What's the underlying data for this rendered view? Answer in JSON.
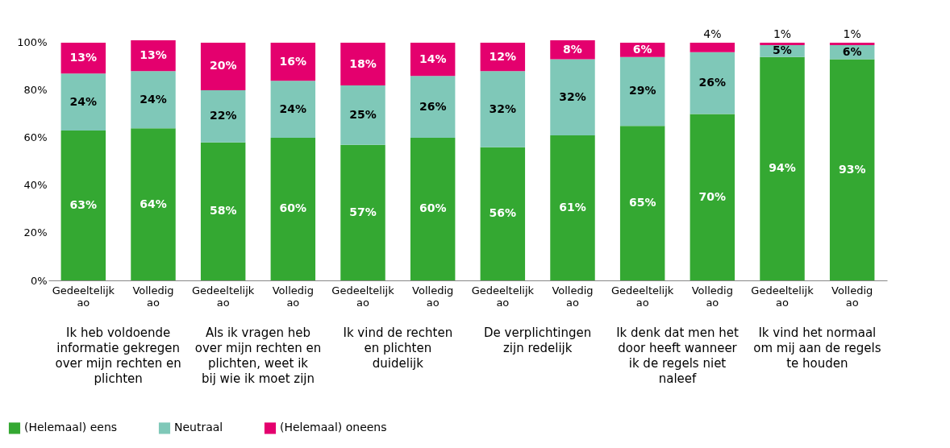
{
  "chart_data": {
    "type": "bar",
    "stacked": true,
    "categories": [
      "Gedeeltelijk ao",
      "Volledig ao",
      "Gedeeltelijk ao",
      "Volledig ao",
      "Gedeeltelijk ao",
      "Volledig ao",
      "Gedeeltelijk ao",
      "Volledig ao",
      "Gedeeltelijk ao",
      "Volledig ao",
      "Gedeeltelijk ao",
      "Volledig ao"
    ],
    "series": [
      {
        "name": "(Helemaal) eens",
        "color": "#34a832",
        "values": [
          63,
          64,
          58,
          60,
          57,
          60,
          56,
          61,
          65,
          70,
          94,
          93
        ],
        "value_labels": [
          "63%",
          "64%",
          "58%",
          "60%",
          "57%",
          "60%",
          "56%",
          "61%",
          "65%",
          "70%",
          "94%",
          "93%"
        ]
      },
      {
        "name": "Neutraal",
        "color": "#7fc8b8",
        "values": [
          24,
          24,
          22,
          24,
          25,
          26,
          32,
          32,
          29,
          26,
          5,
          6
        ],
        "value_labels": [
          "24%",
          "24%",
          "22%",
          "24%",
          "25%",
          "26%",
          "32%",
          "32%",
          "29%",
          "26%",
          "5%",
          "6%"
        ]
      },
      {
        "name": "(Helemaal) oneens",
        "color": "#e4006e",
        "values": [
          13,
          13,
          20,
          16,
          18,
          14,
          12,
          8,
          6,
          4,
          1,
          1
        ],
        "value_labels": [
          "13%",
          "13%",
          "20%",
          "16%",
          "18%",
          "14%",
          "12%",
          "8%",
          "6%",
          "4%",
          "1%",
          "1%"
        ]
      }
    ],
    "ylim": [
      0,
      101
    ],
    "yticks": [
      {
        "value": 0,
        "label": "0%"
      },
      {
        "value": 20,
        "label": "20%"
      },
      {
        "value": 40,
        "label": "40%"
      },
      {
        "value": 60,
        "label": "60%"
      },
      {
        "value": 80,
        "label": "80%"
      },
      {
        "value": 100,
        "label": "100%"
      }
    ],
    "grid": false,
    "legend": "bottom left",
    "annotations": [
      "Ik heb voldoende informatie gekregen over mijn rechten en plichten",
      "Als ik vragen heb over mijn rechten en plichten, weet ik bij wie ik moet zijn",
      "Ik vind de rechten en plichten duidelijk",
      "De verplichtingen zijn redelijk",
      "Ik denk dat men het door heeft wanneer ik de regels niet naleef",
      "Ik vind het normaal om mij aan de regels te houden"
    ]
  }
}
